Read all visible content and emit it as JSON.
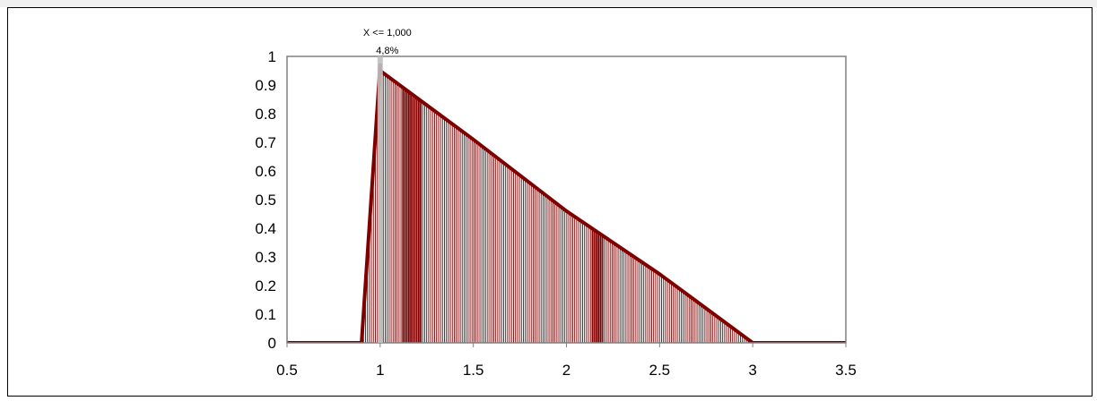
{
  "chart_data": {
    "type": "area",
    "title": "",
    "xlabel": "",
    "ylabel": "",
    "xlim": [
      0.5,
      3.5
    ],
    "ylim": [
      0,
      1
    ],
    "xticks": [
      "0.5",
      "1",
      "1.5",
      "2",
      "2.5",
      "3",
      "3.5"
    ],
    "yticks": [
      "0",
      "0.1",
      "0.2",
      "0.3",
      "0.4",
      "0.5",
      "0.6",
      "0.7",
      "0.8",
      "0.9",
      "1"
    ],
    "grid": false,
    "legend": "none",
    "series": [
      {
        "x": [
          0.5,
          0.9,
          1.0,
          1.0,
          1.5,
          2.0,
          2.5,
          3.0,
          3.0,
          3.5
        ],
        "y": [
          0,
          0,
          0.97,
          0.95,
          0.71,
          0.46,
          0.24,
          0,
          0,
          0
        ]
      }
    ],
    "marker": {
      "x": 1.0,
      "label_top": "X <= 1,000",
      "label_bottom": "4,8%"
    },
    "colors": {
      "fill": "#800000",
      "line": "#800000",
      "marker": "#c0c0c0",
      "axes_box": "#808080"
    }
  }
}
